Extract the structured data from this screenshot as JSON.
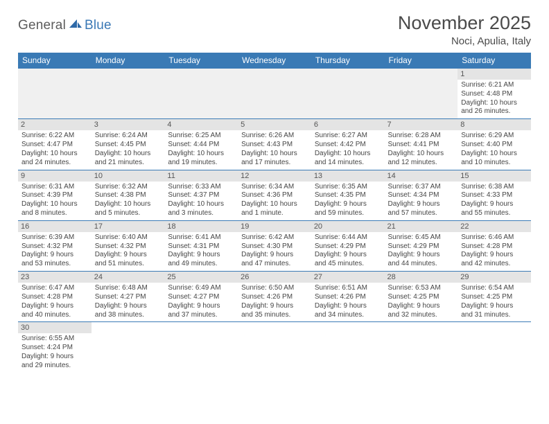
{
  "logo": {
    "text1": "General",
    "text2": "Blue"
  },
  "title": "November 2025",
  "location": "Noci, Apulia, Italy",
  "colors": {
    "header_bg": "#3a7ab5",
    "header_fg": "#ffffff",
    "daynum_bg": "#e4e4e4",
    "rule": "#3a7ab5",
    "logo_gray": "#5b5b5b",
    "logo_blue": "#3a78b5"
  },
  "weekdays": [
    "Sunday",
    "Monday",
    "Tuesday",
    "Wednesday",
    "Thursday",
    "Friday",
    "Saturday"
  ],
  "weeks": [
    [
      null,
      null,
      null,
      null,
      null,
      null,
      {
        "n": "1",
        "sunrise": "Sunrise: 6:21 AM",
        "sunset": "Sunset: 4:48 PM",
        "day1": "Daylight: 10 hours",
        "day2": "and 26 minutes."
      }
    ],
    [
      {
        "n": "2",
        "sunrise": "Sunrise: 6:22 AM",
        "sunset": "Sunset: 4:47 PM",
        "day1": "Daylight: 10 hours",
        "day2": "and 24 minutes."
      },
      {
        "n": "3",
        "sunrise": "Sunrise: 6:24 AM",
        "sunset": "Sunset: 4:45 PM",
        "day1": "Daylight: 10 hours",
        "day2": "and 21 minutes."
      },
      {
        "n": "4",
        "sunrise": "Sunrise: 6:25 AM",
        "sunset": "Sunset: 4:44 PM",
        "day1": "Daylight: 10 hours",
        "day2": "and 19 minutes."
      },
      {
        "n": "5",
        "sunrise": "Sunrise: 6:26 AM",
        "sunset": "Sunset: 4:43 PM",
        "day1": "Daylight: 10 hours",
        "day2": "and 17 minutes."
      },
      {
        "n": "6",
        "sunrise": "Sunrise: 6:27 AM",
        "sunset": "Sunset: 4:42 PM",
        "day1": "Daylight: 10 hours",
        "day2": "and 14 minutes."
      },
      {
        "n": "7",
        "sunrise": "Sunrise: 6:28 AM",
        "sunset": "Sunset: 4:41 PM",
        "day1": "Daylight: 10 hours",
        "day2": "and 12 minutes."
      },
      {
        "n": "8",
        "sunrise": "Sunrise: 6:29 AM",
        "sunset": "Sunset: 4:40 PM",
        "day1": "Daylight: 10 hours",
        "day2": "and 10 minutes."
      }
    ],
    [
      {
        "n": "9",
        "sunrise": "Sunrise: 6:31 AM",
        "sunset": "Sunset: 4:39 PM",
        "day1": "Daylight: 10 hours",
        "day2": "and 8 minutes."
      },
      {
        "n": "10",
        "sunrise": "Sunrise: 6:32 AM",
        "sunset": "Sunset: 4:38 PM",
        "day1": "Daylight: 10 hours",
        "day2": "and 5 minutes."
      },
      {
        "n": "11",
        "sunrise": "Sunrise: 6:33 AM",
        "sunset": "Sunset: 4:37 PM",
        "day1": "Daylight: 10 hours",
        "day2": "and 3 minutes."
      },
      {
        "n": "12",
        "sunrise": "Sunrise: 6:34 AM",
        "sunset": "Sunset: 4:36 PM",
        "day1": "Daylight: 10 hours",
        "day2": "and 1 minute."
      },
      {
        "n": "13",
        "sunrise": "Sunrise: 6:35 AM",
        "sunset": "Sunset: 4:35 PM",
        "day1": "Daylight: 9 hours",
        "day2": "and 59 minutes."
      },
      {
        "n": "14",
        "sunrise": "Sunrise: 6:37 AM",
        "sunset": "Sunset: 4:34 PM",
        "day1": "Daylight: 9 hours",
        "day2": "and 57 minutes."
      },
      {
        "n": "15",
        "sunrise": "Sunrise: 6:38 AM",
        "sunset": "Sunset: 4:33 PM",
        "day1": "Daylight: 9 hours",
        "day2": "and 55 minutes."
      }
    ],
    [
      {
        "n": "16",
        "sunrise": "Sunrise: 6:39 AM",
        "sunset": "Sunset: 4:32 PM",
        "day1": "Daylight: 9 hours",
        "day2": "and 53 minutes."
      },
      {
        "n": "17",
        "sunrise": "Sunrise: 6:40 AM",
        "sunset": "Sunset: 4:32 PM",
        "day1": "Daylight: 9 hours",
        "day2": "and 51 minutes."
      },
      {
        "n": "18",
        "sunrise": "Sunrise: 6:41 AM",
        "sunset": "Sunset: 4:31 PM",
        "day1": "Daylight: 9 hours",
        "day2": "and 49 minutes."
      },
      {
        "n": "19",
        "sunrise": "Sunrise: 6:42 AM",
        "sunset": "Sunset: 4:30 PM",
        "day1": "Daylight: 9 hours",
        "day2": "and 47 minutes."
      },
      {
        "n": "20",
        "sunrise": "Sunrise: 6:44 AM",
        "sunset": "Sunset: 4:29 PM",
        "day1": "Daylight: 9 hours",
        "day2": "and 45 minutes."
      },
      {
        "n": "21",
        "sunrise": "Sunrise: 6:45 AM",
        "sunset": "Sunset: 4:29 PM",
        "day1": "Daylight: 9 hours",
        "day2": "and 44 minutes."
      },
      {
        "n": "22",
        "sunrise": "Sunrise: 6:46 AM",
        "sunset": "Sunset: 4:28 PM",
        "day1": "Daylight: 9 hours",
        "day2": "and 42 minutes."
      }
    ],
    [
      {
        "n": "23",
        "sunrise": "Sunrise: 6:47 AM",
        "sunset": "Sunset: 4:28 PM",
        "day1": "Daylight: 9 hours",
        "day2": "and 40 minutes."
      },
      {
        "n": "24",
        "sunrise": "Sunrise: 6:48 AM",
        "sunset": "Sunset: 4:27 PM",
        "day1": "Daylight: 9 hours",
        "day2": "and 38 minutes."
      },
      {
        "n": "25",
        "sunrise": "Sunrise: 6:49 AM",
        "sunset": "Sunset: 4:27 PM",
        "day1": "Daylight: 9 hours",
        "day2": "and 37 minutes."
      },
      {
        "n": "26",
        "sunrise": "Sunrise: 6:50 AM",
        "sunset": "Sunset: 4:26 PM",
        "day1": "Daylight: 9 hours",
        "day2": "and 35 minutes."
      },
      {
        "n": "27",
        "sunrise": "Sunrise: 6:51 AM",
        "sunset": "Sunset: 4:26 PM",
        "day1": "Daylight: 9 hours",
        "day2": "and 34 minutes."
      },
      {
        "n": "28",
        "sunrise": "Sunrise: 6:53 AM",
        "sunset": "Sunset: 4:25 PM",
        "day1": "Daylight: 9 hours",
        "day2": "and 32 minutes."
      },
      {
        "n": "29",
        "sunrise": "Sunrise: 6:54 AM",
        "sunset": "Sunset: 4:25 PM",
        "day1": "Daylight: 9 hours",
        "day2": "and 31 minutes."
      }
    ],
    [
      {
        "n": "30",
        "sunrise": "Sunrise: 6:55 AM",
        "sunset": "Sunset: 4:24 PM",
        "day1": "Daylight: 9 hours",
        "day2": "and 29 minutes."
      },
      null,
      null,
      null,
      null,
      null,
      null
    ]
  ]
}
